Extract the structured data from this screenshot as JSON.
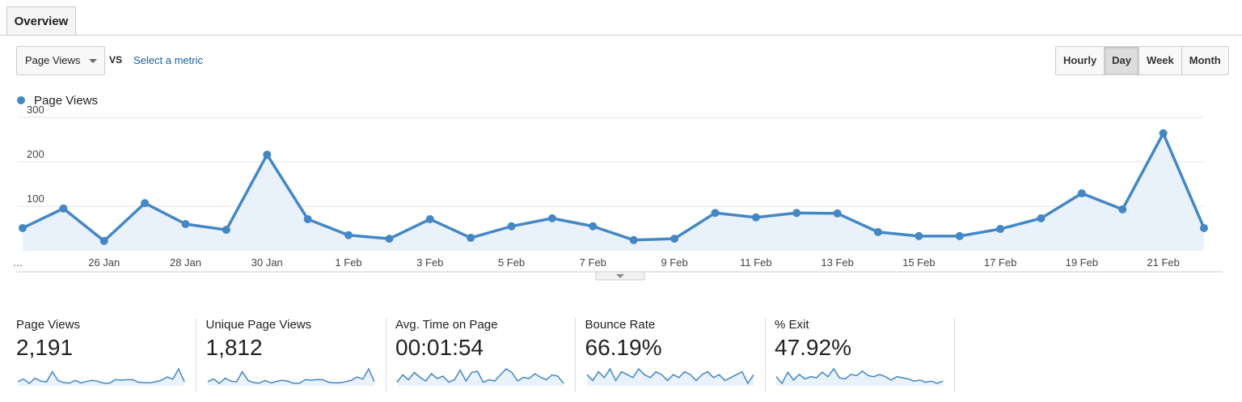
{
  "tab": "Overview",
  "controls": {
    "metric_dropdown": "Page Views",
    "vs": "VS",
    "select_metric": "Select a metric",
    "granularity": [
      "Hourly",
      "Day",
      "Week",
      "Month"
    ],
    "active_granularity": 1
  },
  "chart_data": {
    "type": "line",
    "categories": [
      "…",
      null,
      "26 Jan",
      null,
      "28 Jan",
      null,
      "30 Jan",
      null,
      "1 Feb",
      null,
      "3 Feb",
      null,
      "5 Feb",
      null,
      "7 Feb",
      null,
      "9 Feb",
      null,
      "11 Feb",
      null,
      "13 Feb",
      null,
      "15 Feb",
      null,
      "17 Feb",
      null,
      "19 Feb",
      null,
      "21 Feb",
      null
    ],
    "series": [
      {
        "name": "Page Views",
        "color": "#4387c5",
        "values": [
          51,
          95,
          22,
          107,
          60,
          47,
          216,
          71,
          35,
          27,
          71,
          29,
          55,
          73,
          55,
          24,
          27,
          85,
          75,
          85,
          84,
          42,
          33,
          33,
          49,
          73,
          129,
          93,
          264,
          51
        ]
      }
    ],
    "ylim": [
      0,
      300
    ],
    "yticks": [
      100,
      200,
      300
    ],
    "grid": true,
    "area": true
  },
  "metrics": [
    {
      "label": "Page Views",
      "value": "2,191"
    },
    {
      "label": "Unique Page Views",
      "value": "1,812",
      "sparkline": [
        42,
        79,
        18,
        89,
        50,
        39,
        179,
        59,
        29,
        22,
        59,
        24,
        46,
        61,
        46,
        20,
        22,
        71,
        62,
        71,
        70,
        35,
        27,
        27,
        41,
        61,
        107,
        77,
        219,
        42
      ]
    },
    {
      "label": "Avg. Time on Page",
      "value": "00:01:54",
      "sparkline": [
        90,
        120,
        100,
        130,
        110,
        95,
        125,
        105,
        115,
        90,
        100,
        140,
        95,
        130,
        135,
        90,
        100,
        95,
        120,
        145,
        130,
        95,
        110,
        105,
        125,
        110,
        100,
        120,
        115,
        85
      ]
    },
    {
      "label": "Bounce Rate",
      "value": "66.19%",
      "sparkline": [
        66,
        64,
        67,
        65,
        68,
        64,
        67,
        66,
        65,
        68,
        66,
        65,
        67,
        66,
        64,
        66,
        65,
        67,
        66,
        64,
        66,
        67,
        65,
        66,
        64,
        65,
        66,
        67,
        63,
        66
      ]
    },
    {
      "label": "% Exit",
      "value": "47.92%",
      "sparkline": [
        48,
        42,
        52,
        45,
        50,
        46,
        48,
        47,
        52,
        48,
        55,
        47,
        46,
        50,
        49,
        53,
        49,
        48,
        50,
        48,
        45,
        48,
        47,
        46,
        44,
        45,
        43,
        44,
        42,
        44
      ]
    }
  ]
}
